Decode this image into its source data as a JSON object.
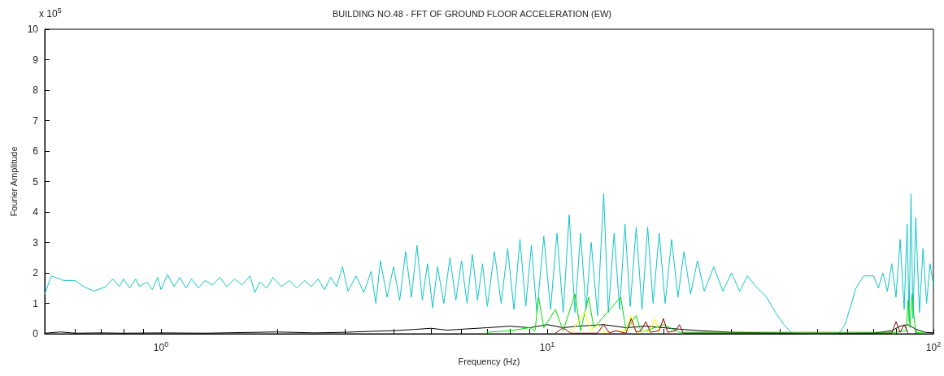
{
  "chart_data": {
    "type": "line",
    "title": "BUILDING NO.48 - FFT OF GROUND FLOOR ACCELERATION (EW)",
    "xlabel": "Frequency (Hz)",
    "ylabel": "Fourier Amplitude",
    "annotations": [
      "x 10$^{5}$"
    ],
    "log": "x",
    "grid": false,
    "marker": "none",
    "line_style": "solid",
    "xlim": [
      0.5,
      100
    ],
    "xticks": [
      {
        "value": 0.6,
        "label": null
      },
      {
        "value": 0.7,
        "label": null
      },
      {
        "value": 0.8,
        "label": null
      },
      {
        "value": 0.9,
        "label": null
      },
      {
        "value": 1,
        "label": "10$^{0}$"
      },
      {
        "value": 2,
        "label": null
      },
      {
        "value": 3,
        "label": null
      },
      {
        "value": 4,
        "label": null
      },
      {
        "value": 5,
        "label": null
      },
      {
        "value": 6,
        "label": null
      },
      {
        "value": 7,
        "label": null
      },
      {
        "value": 8,
        "label": null
      },
      {
        "value": 9,
        "label": null
      },
      {
        "value": 10,
        "label": "10$^{1}$"
      },
      {
        "value": 20,
        "label": null
      },
      {
        "value": 30,
        "label": null
      },
      {
        "value": 40,
        "label": null
      },
      {
        "value": 50,
        "label": null
      },
      {
        "value": 60,
        "label": null
      },
      {
        "value": 70,
        "label": null
      },
      {
        "value": 80,
        "label": null
      },
      {
        "value": 90,
        "label": null
      },
      {
        "value": 100,
        "label": "10$^{2}$"
      }
    ],
    "ylim": [
      0,
      10
    ],
    "yticks": [
      0,
      1,
      2,
      3,
      4,
      5,
      6,
      7,
      8,
      9,
      10
    ],
    "series": [
      {
        "color": "#000000",
        "x": [
          0.5,
          0.55,
          0.6,
          0.7,
          0.8,
          1.0,
          1.3,
          1.6,
          2.0,
          2.5,
          3.0,
          3.5,
          4.0,
          4.5,
          5.0,
          5.5,
          6.0,
          7.0,
          8.0,
          9.0,
          10.0,
          11.0,
          12.0,
          14.0,
          16.0,
          18.0,
          20.0,
          22.0,
          25.0,
          30.0,
          40.0,
          50.0,
          60.0,
          70.0,
          78.0,
          82.0,
          86.0,
          90.0,
          95.0,
          100.0
        ],
        "values": [
          0.02,
          0.06,
          0.02,
          0.03,
          0.02,
          0.03,
          0.02,
          0.04,
          0.06,
          0.03,
          0.05,
          0.08,
          0.1,
          0.14,
          0.18,
          0.12,
          0.15,
          0.2,
          0.25,
          0.2,
          0.3,
          0.2,
          0.25,
          0.3,
          0.2,
          0.25,
          0.2,
          0.15,
          0.1,
          0.05,
          0.02,
          0.01,
          0.01,
          0.02,
          0.1,
          0.25,
          0.3,
          0.15,
          0.05,
          0.03
        ]
      },
      {
        "color": "#11c4c4",
        "x": [
          0.5,
          0.52,
          0.56,
          0.6,
          0.63,
          0.67,
          0.72,
          0.75,
          0.78,
          0.8,
          0.83,
          0.86,
          0.88,
          0.92,
          0.95,
          0.98,
          1.0,
          1.04,
          1.08,
          1.12,
          1.16,
          1.2,
          1.25,
          1.3,
          1.36,
          1.42,
          1.48,
          1.55,
          1.62,
          1.7,
          1.75,
          1.8,
          1.88,
          1.95,
          2.05,
          2.15,
          2.25,
          2.35,
          2.45,
          2.55,
          2.65,
          2.75,
          2.85,
          2.95,
          3.05,
          3.2,
          3.35,
          3.5,
          3.6,
          3.7,
          3.85,
          4.0,
          4.15,
          4.3,
          4.45,
          4.6,
          4.75,
          4.9,
          5.05,
          5.2,
          5.4,
          5.6,
          5.8,
          6.0,
          6.2,
          6.4,
          6.6,
          6.8,
          7.0,
          7.3,
          7.6,
          7.9,
          8.2,
          8.5,
          8.8,
          9.1,
          9.4,
          9.8,
          10.2,
          10.6,
          11.0,
          11.4,
          11.8,
          12.2,
          12.6,
          13.0,
          13.5,
          14.0,
          14.4,
          14.9,
          15.4,
          15.9,
          16.4,
          17.0,
          17.6,
          18.2,
          18.8,
          19.5,
          20.2,
          21.0,
          21.8,
          22.6,
          23.5,
          24.5,
          25.5,
          27.0,
          28.5,
          30.0,
          31.5,
          33.0,
          35.0,
          37.0,
          39.0,
          41.0,
          43.0,
          50.0,
          57.0,
          59.0,
          61.0,
          63.0,
          66.0,
          70.0,
          72.0,
          74.0,
          76.0,
          78.0,
          80.0,
          82.0,
          84.0,
          85.5,
          86.5,
          87.5,
          88.5,
          90.0,
          92.0,
          94.0,
          96.0,
          98.0,
          100.0
        ],
        "values": [
          1.3,
          1.9,
          1.75,
          1.75,
          1.55,
          1.4,
          1.55,
          1.8,
          1.55,
          1.8,
          1.5,
          1.8,
          1.55,
          1.7,
          1.45,
          1.85,
          1.45,
          1.95,
          1.55,
          1.85,
          1.5,
          1.8,
          1.5,
          1.75,
          1.6,
          1.85,
          1.55,
          1.8,
          1.6,
          1.9,
          1.35,
          1.7,
          1.5,
          1.85,
          1.55,
          1.75,
          1.5,
          1.75,
          1.55,
          1.8,
          1.45,
          1.85,
          1.55,
          2.2,
          1.4,
          1.9,
          1.35,
          2.05,
          1.0,
          2.4,
          1.2,
          2.2,
          1.1,
          2.7,
          1.2,
          2.9,
          1.1,
          2.3,
          0.85,
          2.2,
          1.0,
          2.5,
          1.1,
          2.4,
          1.0,
          2.6,
          1.1,
          2.3,
          0.9,
          2.7,
          1.0,
          2.8,
          0.8,
          3.1,
          0.9,
          2.9,
          0.7,
          3.2,
          0.8,
          3.3,
          0.7,
          3.9,
          0.7,
          3.3,
          0.8,
          3.0,
          0.6,
          4.6,
          0.7,
          3.3,
          0.8,
          3.6,
          0.9,
          3.5,
          0.8,
          3.5,
          1.0,
          3.3,
          1.0,
          3.1,
          1.2,
          2.7,
          1.3,
          2.4,
          1.4,
          2.2,
          1.4,
          2.0,
          1.4,
          1.9,
          1.5,
          1.2,
          0.7,
          0.3,
          0.02,
          0.0,
          0.02,
          0.3,
          0.9,
          1.5,
          1.9,
          1.9,
          1.5,
          2.0,
          1.4,
          2.3,
          1.2,
          3.1,
          0.8,
          3.6,
          0.4,
          4.6,
          0.5,
          3.8,
          0.7,
          2.8,
          1.0,
          2.3,
          1.6
        ]
      },
      {
        "color": "#00dd00",
        "x": [
          7.0,
          8.0,
          9.0,
          9.3,
          9.5,
          9.8,
          10.5,
          11.0,
          11.8,
          12.2,
          12.8,
          13.2,
          15.5,
          16.0,
          17.0,
          17.5,
          20.0,
          22.0,
          80.0,
          85.0,
          86.0,
          87.0,
          88.0,
          89.0,
          90.0,
          95.0
        ],
        "values": [
          0.05,
          0.1,
          0.2,
          0.1,
          1.2,
          0.2,
          0.8,
          0.1,
          1.3,
          0.1,
          1.2,
          0.2,
          1.2,
          0.1,
          0.6,
          0.05,
          0.3,
          0.05,
          0.05,
          0.1,
          1.1,
          0.2,
          1.3,
          0.6,
          0.05,
          0.02
        ]
      },
      {
        "color": "#ffff00",
        "x": [
          11.5,
          12.5,
          13.0,
          13.5,
          14.0,
          16.0,
          16.5,
          17.0,
          18.5,
          19.0,
          19.5
        ],
        "values": [
          0.05,
          0.7,
          0.1,
          0.3,
          0.05,
          0.1,
          0.6,
          0.05,
          0.1,
          0.5,
          0.05
        ]
      },
      {
        "color": "#8b0000",
        "x": [
          10.5,
          11.0,
          11.5,
          13.5,
          14.0,
          14.5,
          15.0,
          16.0,
          16.5,
          17.0,
          17.5,
          18.0,
          18.5,
          19.5,
          20.0,
          20.5,
          21.5,
          22.0,
          22.5,
          78.0,
          80.0,
          82.0,
          84.0,
          86.0
        ],
        "values": [
          0.02,
          0.2,
          0.02,
          0.02,
          0.3,
          0.02,
          0.1,
          0.02,
          0.5,
          0.05,
          0.1,
          0.4,
          0.05,
          0.1,
          0.5,
          0.05,
          0.1,
          0.3,
          0.02,
          0.02,
          0.4,
          0.05,
          0.3,
          0.02
        ]
      }
    ]
  }
}
